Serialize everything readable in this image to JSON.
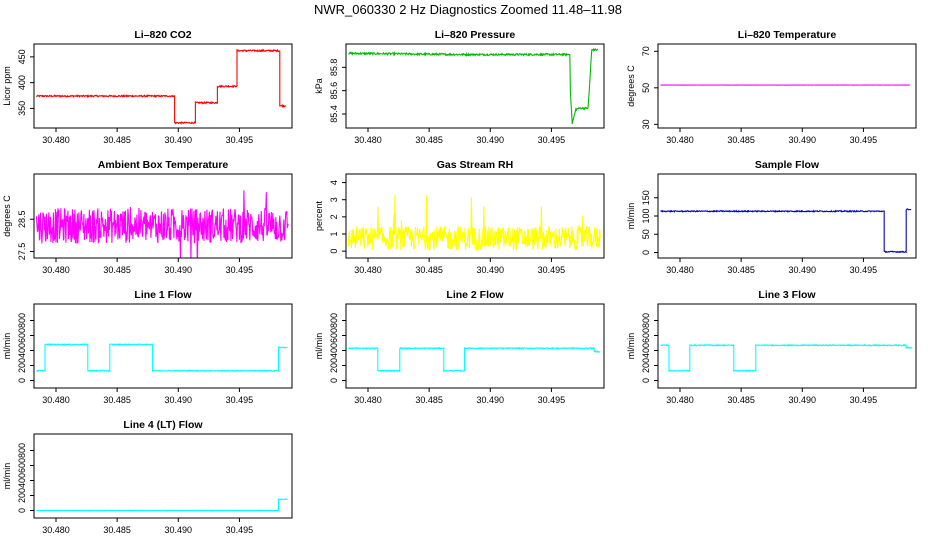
{
  "figure": {
    "title": "NWR_060330  2 Hz Diagnostics Zoomed 11.48–11.98"
  },
  "chart_data": [
    {
      "id": "co2",
      "type": "line",
      "title": "Li–820 CO2",
      "ylabel": "Licor ppm",
      "color": "#ff0000",
      "xlabel": "",
      "xlim": [
        30.4782,
        30.4993
      ],
      "xticks": [
        "30.480",
        "30.485",
        "30.490",
        "30.495"
      ],
      "xtick_values": [
        30.48,
        30.485,
        30.49,
        30.495
      ],
      "ylim": [
        312,
        475
      ],
      "yticks": [
        "350",
        "400",
        "450"
      ],
      "ytick_values": [
        350,
        400,
        450
      ],
      "series": [
        {
          "name": "CO2",
          "x": [
            30.4784,
            30.4897,
            30.4897,
            30.4914,
            30.4914,
            30.4932,
            30.4932,
            30.4948,
            30.4948,
            30.4983,
            30.4983,
            30.4988
          ],
          "y": [
            374,
            374,
            322,
            322,
            361,
            361,
            393,
            393,
            462,
            462,
            355,
            355
          ],
          "noise": 1.5
        }
      ]
    },
    {
      "id": "pressure",
      "type": "line",
      "title": "Li–820 Pressure",
      "ylabel": "kPa",
      "color": "#00bb00",
      "xlabel": "",
      "xlim": [
        30.4782,
        30.4993
      ],
      "xticks": [
        "30.480",
        "30.485",
        "30.490",
        "30.495"
      ],
      "xtick_values": [
        30.48,
        30.485,
        30.49,
        30.495
      ],
      "ylim": [
        85.28,
        86.0
      ],
      "yticks": [
        "85.4",
        "85.6",
        "85.8"
      ],
      "ytick_values": [
        85.4,
        85.6,
        85.8
      ],
      "series": [
        {
          "name": "Pressure",
          "x": [
            30.4784,
            30.4875,
            30.4965,
            30.49655,
            30.4967,
            30.497,
            30.4973,
            30.498,
            30.4983,
            30.4988
          ],
          "y": [
            85.92,
            85.91,
            85.91,
            85.6,
            85.32,
            85.44,
            85.45,
            85.45,
            85.95,
            85.95
          ],
          "noise": 0.008
        }
      ]
    },
    {
      "id": "temperature",
      "type": "line",
      "title": "Li–820 Temperature",
      "ylabel": "degrees C",
      "color": "#ff00ff",
      "xlabel": "",
      "xlim": [
        30.4782,
        30.4993
      ],
      "xticks": [
        "30.480",
        "30.485",
        "30.490",
        "30.495"
      ],
      "xtick_values": [
        30.48,
        30.485,
        30.49,
        30.495
      ],
      "ylim": [
        28,
        74
      ],
      "yticks": [
        "30",
        "50",
        "70"
      ],
      "ytick_values": [
        30,
        50,
        70
      ],
      "series": [
        {
          "name": "Temperature",
          "x": [
            30.4784,
            30.4988
          ],
          "y": [
            51.5,
            51.5
          ],
          "noise": 0.05
        }
      ]
    },
    {
      "id": "ambient",
      "type": "line",
      "title": "Ambient Box Temperature",
      "ylabel": "degrees C",
      "color": "#ff00ff",
      "xlabel": "",
      "xlim": [
        30.4782,
        30.4993
      ],
      "xticks": [
        "30.480",
        "30.485",
        "30.490",
        "30.495"
      ],
      "xtick_values": [
        30.48,
        30.485,
        30.49,
        30.495
      ],
      "ylim": [
        27.3,
        29.9
      ],
      "yticks": [
        "27.5",
        "28.5"
      ],
      "ytick_values": [
        27.5,
        28.5
      ],
      "series": [
        {
          "name": "Ambient",
          "x": [
            30.4784,
            30.499
          ],
          "y": [
            28.3,
            28.3
          ],
          "noise": 0.55
        }
      ]
    },
    {
      "id": "rh",
      "type": "line",
      "title": "Gas Stream RH",
      "ylabel": "percent",
      "color": "#ffff00",
      "xlabel": "",
      "xlim": [
        30.4782,
        30.4993
      ],
      "xticks": [
        "30.480",
        "30.485",
        "30.490",
        "30.495"
      ],
      "xtick_values": [
        30.48,
        30.485,
        30.49,
        30.495
      ],
      "ylim": [
        -0.4,
        4.5
      ],
      "yticks": [
        "0",
        "1",
        "2",
        "3",
        "4"
      ],
      "ytick_values": [
        0,
        1,
        2,
        3,
        4
      ],
      "series": [
        {
          "name": "RH",
          "x": [
            30.4784,
            30.499
          ],
          "y": [
            0.75,
            0.75
          ],
          "noise": 0.7
        }
      ]
    },
    {
      "id": "sample_flow",
      "type": "line",
      "title": "Sample Flow",
      "ylabel": "ml/min",
      "color": "#0000cc",
      "xlabel": "",
      "xlim": [
        30.4782,
        30.4993
      ],
      "xticks": [
        "30.480",
        "30.485",
        "30.490",
        "30.495"
      ],
      "xtick_values": [
        30.48,
        30.485,
        30.49,
        30.495
      ],
      "ylim": [
        -15,
        215
      ],
      "yticks": [
        "0",
        "50",
        "100",
        "150"
      ],
      "ytick_values": [
        0,
        50,
        100,
        150
      ],
      "series": [
        {
          "name": "Sample",
          "x": [
            30.4784,
            30.4967,
            30.4967,
            30.4985,
            30.4985,
            30.4989
          ],
          "y": [
            113,
            113,
            2,
            2,
            118,
            118
          ],
          "noise": 1.5
        }
      ]
    },
    {
      "id": "line1",
      "type": "line",
      "title": "Line 1 Flow",
      "ylabel": "ml/min",
      "color": "#00ffff",
      "xlabel": "",
      "xlim": [
        30.4782,
        30.4993
      ],
      "xticks": [
        "30.480",
        "30.485",
        "30.490",
        "30.495"
      ],
      "xtick_values": [
        30.48,
        30.485,
        30.49,
        30.495
      ],
      "ylim": [
        -100,
        1020
      ],
      "yticks": [
        "0",
        "200",
        "400",
        "600",
        "800"
      ],
      "ytick_values": [
        0,
        200,
        400,
        600,
        800
      ],
      "series": [
        {
          "name": "Line 1",
          "x": [
            30.4784,
            30.4791,
            30.4791,
            30.4826,
            30.4826,
            30.4844,
            30.4844,
            30.4879,
            30.4879,
            30.4982,
            30.4982,
            30.4989
          ],
          "y": [
            130,
            130,
            480,
            480,
            130,
            130,
            480,
            480,
            130,
            130,
            440,
            440
          ],
          "noise": 6
        }
      ]
    },
    {
      "id": "line2",
      "type": "line",
      "title": "Line 2 Flow",
      "ylabel": "ml/min",
      "color": "#00ffff",
      "xlabel": "",
      "xlim": [
        30.4782,
        30.4993
      ],
      "xticks": [
        "30.480",
        "30.485",
        "30.490",
        "30.495"
      ],
      "xtick_values": [
        30.48,
        30.485,
        30.49,
        30.495
      ],
      "ylim": [
        -100,
        1020
      ],
      "yticks": [
        "0",
        "200",
        "400",
        "600",
        "800"
      ],
      "ytick_values": [
        0,
        200,
        400,
        600,
        800
      ],
      "series": [
        {
          "name": "Line 2",
          "x": [
            30.4784,
            30.4808,
            30.4808,
            30.4826,
            30.4826,
            30.4862,
            30.4862,
            30.4879,
            30.4879,
            30.4985,
            30.4985,
            30.499
          ],
          "y": [
            430,
            430,
            130,
            130,
            430,
            430,
            130,
            130,
            430,
            430,
            385,
            385
          ],
          "noise": 6
        }
      ]
    },
    {
      "id": "line3",
      "type": "line",
      "title": "Line 3 Flow",
      "ylabel": "ml/min",
      "color": "#00ffff",
      "xlabel": "",
      "xlim": [
        30.4782,
        30.4993
      ],
      "xticks": [
        "30.480",
        "30.485",
        "30.490",
        "30.495"
      ],
      "xtick_values": [
        30.48,
        30.485,
        30.49,
        30.495
      ],
      "ylim": [
        -100,
        1020
      ],
      "yticks": [
        "0",
        "200",
        "400",
        "600",
        "800"
      ],
      "ytick_values": [
        0,
        200,
        400,
        600,
        800
      ],
      "series": [
        {
          "name": "Line 3",
          "x": [
            30.4784,
            30.4791,
            30.4791,
            30.4808,
            30.4808,
            30.4844,
            30.4844,
            30.4862,
            30.4862,
            30.4985,
            30.4985,
            30.499
          ],
          "y": [
            470,
            470,
            130,
            130,
            470,
            470,
            130,
            130,
            470,
            470,
            440,
            440
          ],
          "noise": 6
        }
      ]
    },
    {
      "id": "line4",
      "type": "line",
      "title": "Line 4 (LT) Flow",
      "ylabel": "ml/min",
      "color": "#00ffff",
      "xlabel": "",
      "xlim": [
        30.4782,
        30.4993
      ],
      "xticks": [
        "30.480",
        "30.485",
        "30.490",
        "30.495"
      ],
      "xtick_values": [
        30.48,
        30.485,
        30.49,
        30.495
      ],
      "ylim": [
        -100,
        1020
      ],
      "yticks": [
        "0",
        "200",
        "400",
        "600",
        "800"
      ],
      "ytick_values": [
        0,
        200,
        400,
        600,
        800
      ],
      "series": [
        {
          "name": "Line 4",
          "x": [
            30.4784,
            30.4982,
            30.4982,
            30.4989
          ],
          "y": [
            0,
            0,
            150,
            150
          ],
          "noise": 2
        }
      ]
    }
  ]
}
